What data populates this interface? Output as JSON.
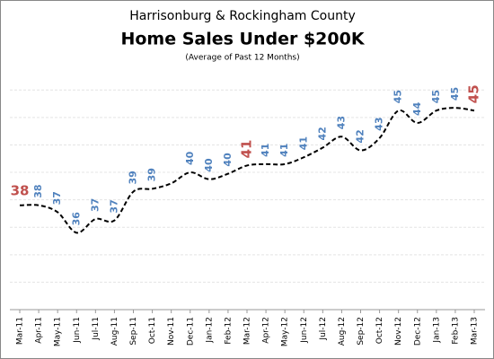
{
  "chart_data": {
    "type": "line",
    "title": "Home Sales Under $200K",
    "supertitle": "Harrisonburg  & Rockingham County",
    "subtitle": "(Average of Past 12 Months)",
    "categories": [
      "Mar-11",
      "Apr-11",
      "May-11",
      "Jun-11",
      "Jul-11",
      "Aug-11",
      "Sep-11",
      "Oct-11",
      "Nov-11",
      "Dec-11",
      "Jan-12",
      "Feb-12",
      "Mar-12",
      "Apr-12",
      "May-12",
      "Jun-12",
      "Jul-12",
      "Aug-12",
      "Sep-12",
      "Oct-12",
      "Nov-12",
      "Dec-12",
      "Jan-13",
      "Feb-13",
      "Mar-13"
    ],
    "values": [
      37.6,
      37.6,
      37.1,
      35.6,
      36.6,
      36.5,
      38.6,
      38.8,
      39.2,
      40.0,
      39.5,
      39.9,
      40.5,
      40.6,
      40.6,
      41.1,
      41.8,
      42.6,
      41.6,
      42.5,
      44.5,
      43.6,
      44.5,
      44.7,
      44.5
    ],
    "value_labels": [
      "38",
      "38",
      "37",
      "36",
      "37",
      "37",
      "39",
      "39",
      null,
      "40",
      "40",
      "40",
      "41",
      "41",
      "41",
      "41",
      "42",
      "43",
      "42",
      "43",
      "45",
      "44",
      "45",
      "45",
      "45"
    ],
    "highlight": [
      0,
      12,
      24
    ],
    "color": "#000000",
    "label_color": "#4f81bd",
    "highlight_color": "#c0504d",
    "ylim": [
      30,
      47
    ],
    "ygrid": [
      32,
      34,
      36,
      38,
      40,
      42,
      44,
      46
    ]
  }
}
